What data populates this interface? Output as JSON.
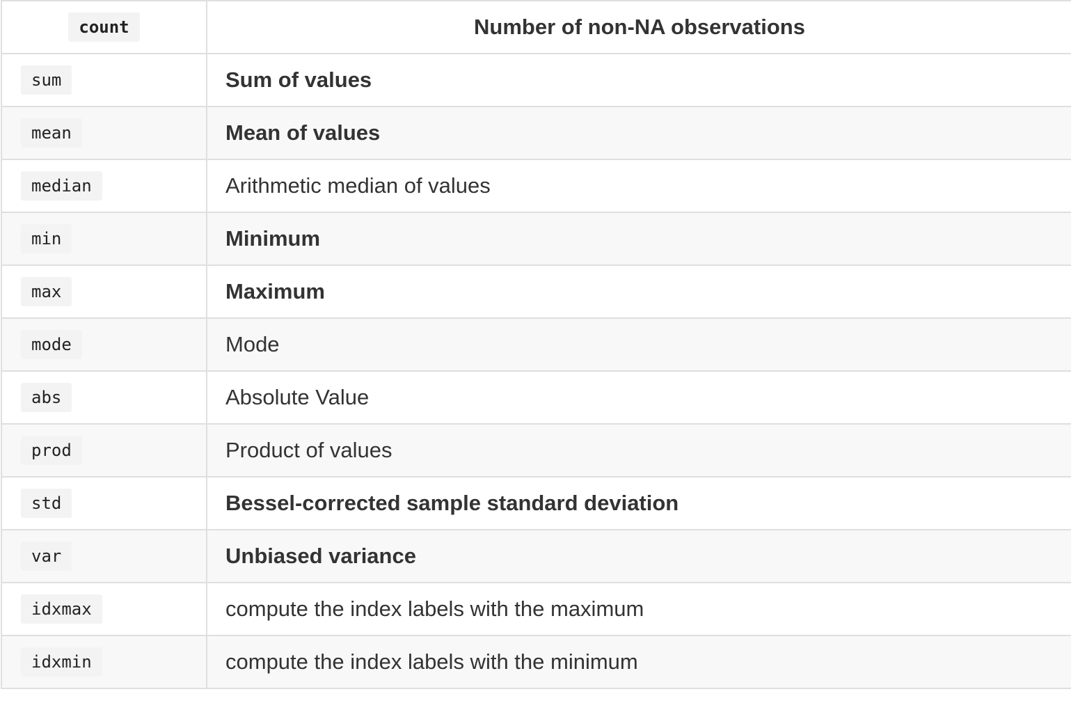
{
  "table": {
    "header": {
      "name": "count",
      "description": "Number of non-NA observations"
    },
    "rows": [
      {
        "name": "sum",
        "description": "Sum of values",
        "bold": true
      },
      {
        "name": "mean",
        "description": "Mean of values",
        "bold": true
      },
      {
        "name": "median",
        "description": "Arithmetic median of values",
        "bold": false
      },
      {
        "name": "min",
        "description": "Minimum",
        "bold": true
      },
      {
        "name": "max",
        "description": "Maximum",
        "bold": true
      },
      {
        "name": "mode",
        "description": "Mode",
        "bold": false
      },
      {
        "name": "abs",
        "description": "Absolute Value",
        "bold": false
      },
      {
        "name": "prod",
        "description": "Product of values",
        "bold": false
      },
      {
        "name": "std",
        "description": "Bessel-corrected sample standard deviation",
        "bold": true
      },
      {
        "name": "var",
        "description": "Unbiased variance",
        "bold": true
      },
      {
        "name": "idxmax",
        "description": "compute the index labels with the maximum",
        "bold": false
      },
      {
        "name": "idxmin",
        "description": "compute the index labels with the minimum",
        "bold": false
      }
    ]
  }
}
